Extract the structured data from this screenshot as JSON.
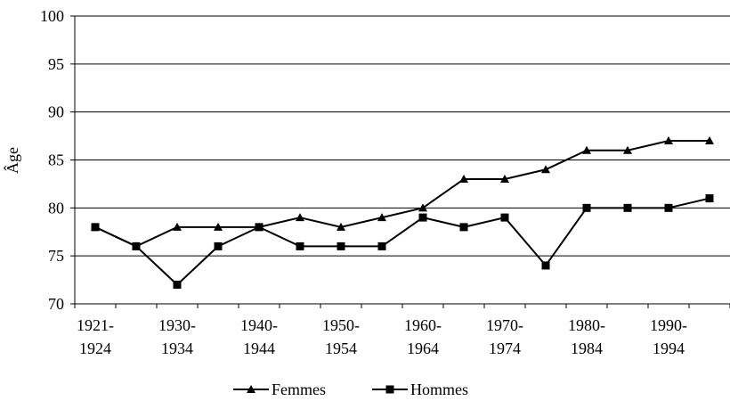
{
  "chart_data": {
    "type": "line",
    "y_label": "Âge",
    "categories": [
      "1921-1924",
      null,
      "1930-1934",
      null,
      "1940-1944",
      null,
      "1950-1954",
      null,
      "1960-1964",
      null,
      "1970-1974",
      null,
      "1980-1984",
      null,
      "1990-1994",
      null
    ],
    "series": [
      {
        "name": "Femmes",
        "color": "#000000",
        "marker": "triangle",
        "values": [
          78,
          76,
          78,
          78,
          78,
          79,
          78,
          79,
          80,
          83,
          83,
          84,
          86,
          86,
          87,
          87
        ]
      },
      {
        "name": "Hommes",
        "color": "#000000",
        "marker": "square",
        "values": [
          78,
          76,
          72,
          76,
          78,
          76,
          76,
          76,
          79,
          78,
          79,
          74,
          80,
          80,
          80,
          81
        ]
      }
    ],
    "ylim": [
      70,
      100
    ],
    "yticks": [
      70,
      75,
      80,
      85,
      90,
      95,
      100
    ],
    "grid": true,
    "legend": "bottom"
  }
}
